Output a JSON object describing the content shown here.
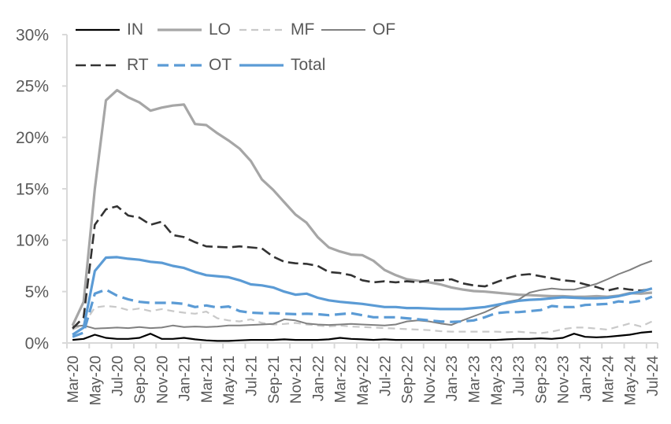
{
  "chart_data": {
    "type": "line",
    "title": "",
    "xlabel": "",
    "ylabel": "",
    "ylim": [
      0,
      30
    ],
    "grid": false,
    "legend_position": "top",
    "axis_color": "#d9d9d9",
    "label_color": "#595959",
    "yticks": [
      "0%",
      "5%",
      "10%",
      "15%",
      "20%",
      "25%",
      "30%"
    ],
    "x_tick_labels": [
      "Mar-20",
      "May-20",
      "Jul-20",
      "Sep-20",
      "Nov-20",
      "Jan-21",
      "Mar-21",
      "May-21",
      "Jul-21",
      "Sep-21",
      "Nov-21",
      "Jan-22",
      "Mar-22",
      "May-22",
      "Jul-22",
      "Sep-22",
      "Nov-22",
      "Jan-23",
      "Mar-23",
      "May-23",
      "Jul-23",
      "Sep-23",
      "Nov-23",
      "Jan-24",
      "Mar-24",
      "May-24",
      "Jul-24"
    ],
    "months": [
      "Mar-20",
      "Apr-20",
      "May-20",
      "Jun-20",
      "Jul-20",
      "Aug-20",
      "Sep-20",
      "Oct-20",
      "Nov-20",
      "Dec-20",
      "Jan-21",
      "Feb-21",
      "Mar-21",
      "Apr-21",
      "May-21",
      "Jun-21",
      "Jul-21",
      "Aug-21",
      "Sep-21",
      "Oct-21",
      "Nov-21",
      "Dec-21",
      "Jan-22",
      "Feb-22",
      "Mar-22",
      "Apr-22",
      "May-22",
      "Jun-22",
      "Jul-22",
      "Aug-22",
      "Sep-22",
      "Oct-22",
      "Nov-22",
      "Dec-22",
      "Jan-23",
      "Feb-23",
      "Mar-23",
      "Apr-23",
      "May-23",
      "Jun-23",
      "Jul-23",
      "Aug-23",
      "Sep-23",
      "Oct-23",
      "Nov-23",
      "Dec-23",
      "Jan-24",
      "Feb-24",
      "Mar-24",
      "Apr-24",
      "May-24",
      "Jun-24",
      "Jul-24"
    ],
    "series": [
      {
        "name": "IN",
        "color": "#000000",
        "width": 2.2,
        "dash": "",
        "values": [
          0.3,
          0.4,
          0.8,
          0.5,
          0.4,
          0.4,
          0.5,
          0.9,
          0.4,
          0.4,
          0.5,
          0.35,
          0.25,
          0.2,
          0.2,
          0.25,
          0.3,
          0.3,
          0.3,
          0.35,
          0.3,
          0.3,
          0.3,
          0.35,
          0.5,
          0.4,
          0.35,
          0.3,
          0.35,
          0.3,
          0.3,
          0.3,
          0.3,
          0.3,
          0.3,
          0.3,
          0.3,
          0.3,
          0.3,
          0.35,
          0.4,
          0.4,
          0.45,
          0.4,
          0.5,
          0.9,
          0.6,
          0.55,
          0.6,
          0.7,
          0.8,
          1.0,
          1.1
        ]
      },
      {
        "name": "LO",
        "color": "#a6a6a6",
        "width": 3.2,
        "dash": "",
        "values": [
          1.7,
          4.0,
          15.0,
          23.6,
          24.6,
          23.9,
          23.4,
          22.6,
          22.9,
          23.1,
          23.2,
          21.3,
          21.2,
          20.4,
          19.7,
          18.9,
          17.7,
          15.9,
          14.9,
          13.7,
          12.5,
          11.7,
          10.3,
          9.3,
          8.9,
          8.6,
          8.55,
          8.0,
          7.1,
          6.6,
          6.2,
          6.05,
          5.9,
          5.7,
          5.4,
          5.2,
          5.05,
          5.0,
          4.9,
          4.8,
          4.7,
          4.65,
          4.6,
          4.55,
          4.55,
          4.5,
          4.5,
          4.55,
          4.5,
          4.6,
          4.85,
          4.8,
          4.9
        ]
      },
      {
        "name": "MF",
        "color": "#c9c9c9",
        "width": 2.2,
        "dash": "9,6",
        "values": [
          1.3,
          1.8,
          3.45,
          3.6,
          3.5,
          3.2,
          3.35,
          3.1,
          3.3,
          3.1,
          2.95,
          2.85,
          3.05,
          2.4,
          2.2,
          2.1,
          2.3,
          1.95,
          1.8,
          1.85,
          1.95,
          1.8,
          1.7,
          1.6,
          1.7,
          1.6,
          1.55,
          1.5,
          1.45,
          1.4,
          1.35,
          1.3,
          1.25,
          1.15,
          1.1,
          1.1,
          1.1,
          1.1,
          1.1,
          1.05,
          1.1,
          1.0,
          0.95,
          1.1,
          1.35,
          1.5,
          1.5,
          1.4,
          1.3,
          1.6,
          1.9,
          1.6,
          2.1
        ]
      },
      {
        "name": "OF",
        "color": "#808080",
        "width": 2.0,
        "dash": "",
        "values": [
          1.6,
          1.7,
          1.4,
          1.45,
          1.5,
          1.45,
          1.55,
          1.45,
          1.5,
          1.7,
          1.55,
          1.6,
          1.55,
          1.6,
          1.7,
          1.7,
          1.75,
          1.8,
          1.85,
          2.3,
          2.2,
          1.9,
          1.8,
          1.75,
          1.8,
          1.85,
          1.8,
          1.75,
          1.7,
          1.8,
          2.1,
          2.2,
          2.1,
          1.9,
          1.75,
          2.2,
          2.6,
          3.0,
          3.5,
          4.0,
          4.2,
          4.9,
          5.15,
          5.3,
          5.2,
          5.2,
          5.45,
          5.75,
          6.2,
          6.7,
          7.1,
          7.6,
          8.0
        ]
      },
      {
        "name": "RT",
        "color": "#333333",
        "width": 2.6,
        "dash": "13,6",
        "values": [
          1.4,
          2.5,
          11.5,
          13.0,
          13.3,
          12.4,
          12.2,
          11.5,
          11.8,
          10.5,
          10.3,
          9.8,
          9.4,
          9.35,
          9.3,
          9.4,
          9.3,
          9.2,
          8.4,
          7.9,
          7.75,
          7.7,
          7.5,
          6.9,
          6.8,
          6.6,
          6.1,
          5.9,
          6.0,
          5.9,
          6.0,
          5.9,
          6.1,
          6.1,
          6.2,
          5.8,
          5.6,
          5.5,
          5.9,
          6.3,
          6.6,
          6.7,
          6.5,
          6.3,
          6.1,
          6.0,
          5.7,
          5.45,
          5.1,
          5.35,
          5.2,
          5.1,
          5.25
        ]
      },
      {
        "name": "OT",
        "color": "#5b9bd5",
        "width": 3.2,
        "dash": "14,7",
        "values": [
          0.6,
          1.0,
          4.8,
          5.2,
          4.6,
          4.25,
          4.0,
          3.9,
          3.9,
          3.9,
          3.8,
          3.5,
          3.65,
          3.45,
          3.55,
          3.1,
          2.95,
          2.9,
          2.9,
          2.85,
          2.8,
          2.85,
          2.8,
          2.7,
          2.8,
          2.9,
          2.7,
          2.5,
          2.5,
          2.5,
          2.4,
          2.3,
          2.2,
          2.1,
          2.05,
          2.1,
          2.2,
          2.5,
          2.9,
          3.0,
          3.0,
          3.1,
          3.2,
          3.6,
          3.5,
          3.5,
          3.7,
          3.75,
          3.8,
          4.05,
          3.95,
          4.1,
          4.5
        ]
      },
      {
        "name": "Total",
        "color": "#5b9bd5",
        "width": 3.2,
        "dash": "",
        "values": [
          0.8,
          1.5,
          7.0,
          8.3,
          8.35,
          8.2,
          8.1,
          7.9,
          7.8,
          7.5,
          7.3,
          6.9,
          6.6,
          6.5,
          6.4,
          6.1,
          5.7,
          5.6,
          5.4,
          5.0,
          4.7,
          4.8,
          4.4,
          4.15,
          4.0,
          3.9,
          3.8,
          3.65,
          3.5,
          3.5,
          3.4,
          3.4,
          3.35,
          3.3,
          3.3,
          3.3,
          3.4,
          3.5,
          3.7,
          3.9,
          4.1,
          4.2,
          4.25,
          4.35,
          4.45,
          4.4,
          4.35,
          4.35,
          4.4,
          4.55,
          4.8,
          5.0,
          5.3
        ]
      }
    ]
  }
}
